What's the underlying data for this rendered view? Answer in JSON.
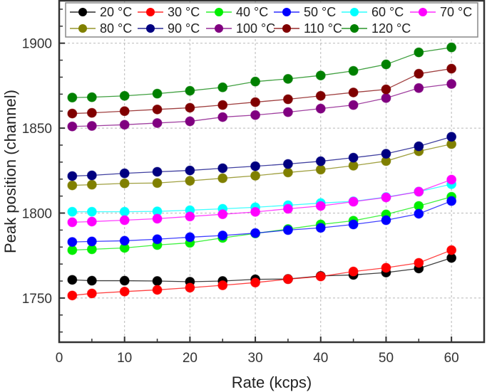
{
  "chart_data": {
    "type": "line",
    "title": "",
    "xlabel": "Rate (kcps)",
    "ylabel": "Peak position (channel)",
    "xlim": [
      0,
      65
    ],
    "ylim": [
      1724,
      1925
    ],
    "xticks": [
      0,
      10,
      20,
      30,
      40,
      50,
      60
    ],
    "xtick_labels": [
      "0",
      "10",
      "20",
      "30",
      "40",
      "50",
      "60"
    ],
    "yticks": [
      1750,
      1800,
      1850,
      1900
    ],
    "ytick_labels": [
      "1750",
      "1800",
      "1850",
      "1900"
    ],
    "grid": true,
    "legend_position": "top",
    "legend_columns": 6,
    "x": [
      2,
      5,
      10,
      15,
      20,
      25,
      30,
      35,
      40,
      45,
      50,
      55,
      60
    ],
    "series": [
      {
        "name": "20 °C",
        "color": "#000000",
        "values": [
          1760.7,
          1760.2,
          1760.2,
          1760.0,
          1759.6,
          1760.0,
          1761.0,
          1761.2,
          1763.0,
          1763.6,
          1765.0,
          1767.4,
          1773.6
        ]
      },
      {
        "name": "30 °C",
        "color": "#ff0000",
        "values": [
          1751.5,
          1752.7,
          1753.8,
          1754.8,
          1756.1,
          1757.5,
          1759.1,
          1761.1,
          1762.7,
          1765.6,
          1767.8,
          1770.7,
          1778.2
        ]
      },
      {
        "name": "40 °C",
        "color": "#00ee00",
        "values": [
          1778.2,
          1778.7,
          1779.5,
          1781.2,
          1782.5,
          1785.4,
          1788.0,
          1790.6,
          1793.3,
          1795.5,
          1799.2,
          1804.2,
          1809.6
        ]
      },
      {
        "name": "50 °C",
        "color": "#0000ff",
        "values": [
          1783.0,
          1783.3,
          1783.7,
          1784.6,
          1785.8,
          1786.8,
          1788.2,
          1790.0,
          1791.3,
          1793.3,
          1795.8,
          1799.6,
          1807.1
        ]
      },
      {
        "name": "60 °C",
        "color": "#00ffff",
        "values": [
          1800.8,
          1800.8,
          1800.8,
          1801.0,
          1801.7,
          1802.5,
          1803.4,
          1804.6,
          1805.9,
          1806.9,
          1809.4,
          1812.6,
          1817.0
        ]
      },
      {
        "name": "70 °C",
        "color": "#ff00ff",
        "values": [
          1794.6,
          1795.0,
          1795.8,
          1796.7,
          1798.0,
          1799.3,
          1800.7,
          1802.5,
          1804.2,
          1806.7,
          1809.2,
          1812.6,
          1819.7
        ]
      },
      {
        "name": "80 °C",
        "color": "#808000",
        "values": [
          1816.3,
          1816.7,
          1817.5,
          1817.7,
          1819.0,
          1820.5,
          1822.0,
          1823.9,
          1825.6,
          1827.9,
          1830.6,
          1836.4,
          1840.6
        ]
      },
      {
        "name": "90 °C",
        "color": "#000080",
        "values": [
          1821.8,
          1822.2,
          1823.4,
          1824.3,
          1825.1,
          1826.4,
          1827.6,
          1828.9,
          1830.5,
          1832.6,
          1834.9,
          1839.3,
          1844.9
        ]
      },
      {
        "name": "100 °C",
        "color": "#800080",
        "values": [
          1851.0,
          1851.3,
          1852.0,
          1853.0,
          1854.0,
          1856.5,
          1857.7,
          1859.4,
          1861.5,
          1863.6,
          1867.7,
          1873.6,
          1876.0
        ]
      },
      {
        "name": "110 °C",
        "color": "#800000",
        "values": [
          1858.6,
          1859.0,
          1860.0,
          1861.0,
          1862.0,
          1863.6,
          1865.3,
          1867.0,
          1869.0,
          1871.0,
          1872.8,
          1882.0,
          1885.0
        ]
      },
      {
        "name": "120 °C",
        "color": "#008000",
        "values": [
          1868.0,
          1868.2,
          1869.0,
          1870.3,
          1872.0,
          1874.0,
          1877.4,
          1879.0,
          1881.0,
          1883.7,
          1887.5,
          1894.6,
          1897.5
        ]
      }
    ]
  }
}
